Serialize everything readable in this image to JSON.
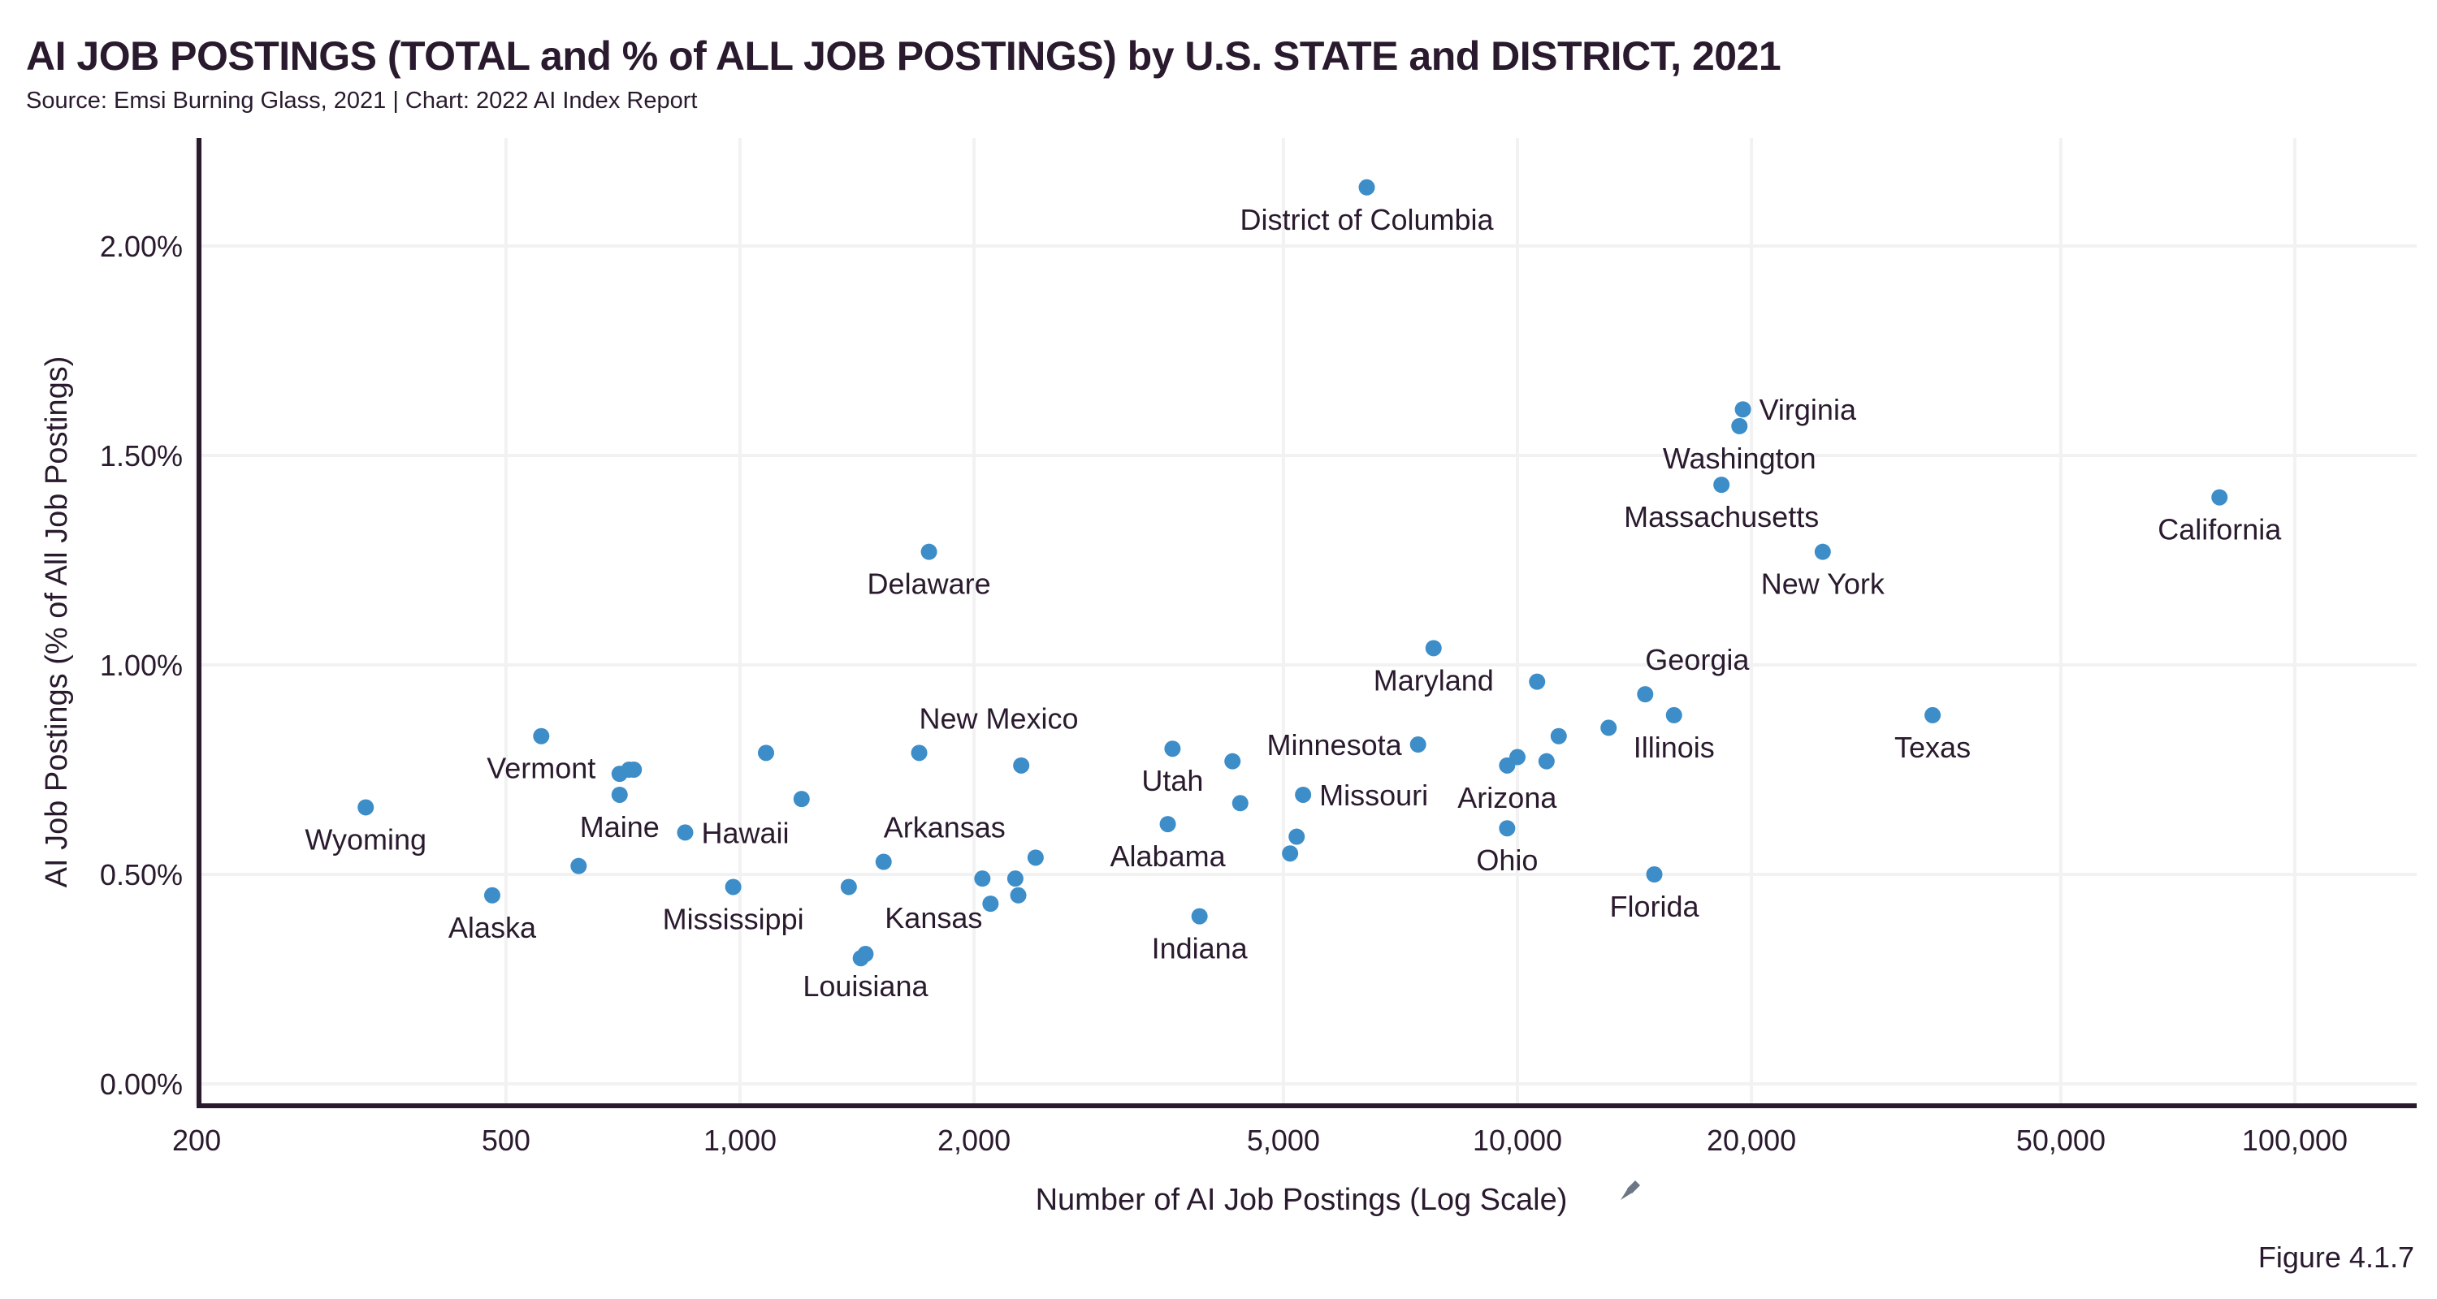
{
  "header": {
    "title": "AI JOB POSTINGS (TOTAL and % of ALL JOB POSTINGS) by U.S. STATE and DISTRICT, 2021",
    "subtitle": "Source: Emsi Burning Glass, 2021 | Chart: 2022 AI Index Report"
  },
  "footer": {
    "figure_label": "Figure 4.1.7"
  },
  "colors": {
    "point": "#3d8dc9",
    "text": "#2a1a2e",
    "grid": "#f2f2f2",
    "axis": "#2a1a2e",
    "icon": "#6b7785"
  },
  "chart_data": {
    "type": "scatter",
    "title": "AI JOB POSTINGS (TOTAL and % of ALL JOB POSTINGS) by U.S. STATE and DISTRICT, 2021",
    "xlabel": "Number of AI Job Postings (Log Scale)",
    "ylabel": "AI Job Postings (% of All Job Postings)",
    "xscale": "log",
    "xlim": [
      180,
      150000
    ],
    "ylim": [
      -0.05,
      2.25
    ],
    "xticks": [
      200,
      500,
      1000,
      2000,
      5000,
      10000,
      20000,
      50000,
      100000
    ],
    "xtick_labels": [
      "200",
      "500",
      "1,000",
      "2,000",
      "5,000",
      "10,000",
      "20,000",
      "50,000",
      "100,000"
    ],
    "yticks": [
      0,
      0.5,
      1.0,
      1.5,
      2.0
    ],
    "ytick_labels": [
      "0.00%",
      "0.50%",
      "1.00%",
      "1.50%",
      "2.00%"
    ],
    "grid": true,
    "points": [
      {
        "label": "District of Columbia",
        "x": 6400,
        "y": 2.14,
        "pos": "below"
      },
      {
        "label": "Virginia",
        "x": 19500,
        "y": 1.61,
        "pos": "right"
      },
      {
        "label": "Washington",
        "x": 19300,
        "y": 1.57,
        "pos": "below"
      },
      {
        "label": "Massachusetts",
        "x": 18300,
        "y": 1.43,
        "pos": "below"
      },
      {
        "label": "California",
        "x": 80000,
        "y": 1.4,
        "pos": "below"
      },
      {
        "label": "New York",
        "x": 24700,
        "y": 1.27,
        "pos": "below"
      },
      {
        "label": "Delaware",
        "x": 1750,
        "y": 1.27,
        "pos": "below"
      },
      {
        "label": "Maryland",
        "x": 7800,
        "y": 1.04,
        "pos": "below"
      },
      {
        "label": "",
        "x": 10600,
        "y": 0.96,
        "pos": "none"
      },
      {
        "label": "Georgia",
        "x": 14600,
        "y": 0.93,
        "pos": "above-right"
      },
      {
        "label": "Illinois",
        "x": 15900,
        "y": 0.88,
        "pos": "below"
      },
      {
        "label": "Texas",
        "x": 34200,
        "y": 0.88,
        "pos": "below"
      },
      {
        "label": "",
        "x": 13100,
        "y": 0.85,
        "pos": "none"
      },
      {
        "label": "",
        "x": 11300,
        "y": 0.83,
        "pos": "none"
      },
      {
        "label": "Minnesota",
        "x": 7450,
        "y": 0.81,
        "pos": "left"
      },
      {
        "label": "",
        "x": 10000,
        "y": 0.78,
        "pos": "none"
      },
      {
        "label": "",
        "x": 10900,
        "y": 0.77,
        "pos": "none"
      },
      {
        "label": "Arizona",
        "x": 9700,
        "y": 0.76,
        "pos": "below"
      },
      {
        "label": "",
        "x": 3600,
        "y": 0.8,
        "pos": "none"
      },
      {
        "label": "",
        "x": 4300,
        "y": 0.77,
        "pos": "none"
      },
      {
        "label": "Utah",
        "x": 3600,
        "y": 0.8,
        "pos": "hidden"
      },
      {
        "label": "",
        "x": 4400,
        "y": 0.67,
        "pos": "none"
      },
      {
        "label": "Missouri",
        "x": 5300,
        "y": 0.69,
        "pos": "right"
      },
      {
        "label": "Ohio",
        "x": 9700,
        "y": 0.61,
        "pos": "below"
      },
      {
        "label": "Alabama",
        "x": 3550,
        "y": 0.62,
        "pos": "below"
      },
      {
        "label": "",
        "x": 5200,
        "y": 0.59,
        "pos": "none"
      },
      {
        "label": "",
        "x": 5100,
        "y": 0.55,
        "pos": "none"
      },
      {
        "label": "Florida",
        "x": 15000,
        "y": 0.5,
        "pos": "below"
      },
      {
        "label": "Indiana",
        "x": 3900,
        "y": 0.4,
        "pos": "below"
      },
      {
        "label": "New Mexico",
        "x": 1700,
        "y": 0.79,
        "pos": "above-right"
      },
      {
        "label": "",
        "x": 2300,
        "y": 0.76,
        "pos": "none"
      },
      {
        "label": "Arkansas",
        "x": 1530,
        "y": 0.53,
        "pos": "above-right"
      },
      {
        "label": "",
        "x": 2400,
        "y": 0.54,
        "pos": "none"
      },
      {
        "label": "",
        "x": 2050,
        "y": 0.49,
        "pos": "none"
      },
      {
        "label": "",
        "x": 2260,
        "y": 0.49,
        "pos": "none"
      },
      {
        "label": "",
        "x": 2280,
        "y": 0.45,
        "pos": "none"
      },
      {
        "label": "Kansas",
        "x": 2100,
        "y": 0.43,
        "pos": "left-below"
      },
      {
        "label": "",
        "x": 1380,
        "y": 0.47,
        "pos": "none"
      },
      {
        "label": "Louisiana",
        "x": 1450,
        "y": 0.31,
        "pos": "below"
      },
      {
        "label": "",
        "x": 1430,
        "y": 0.3,
        "pos": "none"
      },
      {
        "label": "Mississippi",
        "x": 980,
        "y": 0.47,
        "pos": "below"
      },
      {
        "label": "",
        "x": 1080,
        "y": 0.79,
        "pos": "none"
      },
      {
        "label": "",
        "x": 1200,
        "y": 0.68,
        "pos": "none"
      },
      {
        "label": "Hawaii",
        "x": 850,
        "y": 0.6,
        "pos": "right"
      },
      {
        "label": "",
        "x": 700,
        "y": 0.74,
        "pos": "none"
      },
      {
        "label": "",
        "x": 720,
        "y": 0.75,
        "pos": "none"
      },
      {
        "label": "",
        "x": 730,
        "y": 0.75,
        "pos": "none"
      },
      {
        "label": "Maine",
        "x": 700,
        "y": 0.69,
        "pos": "below"
      },
      {
        "label": "Vermont",
        "x": 555,
        "y": 0.83,
        "pos": "below"
      },
      {
        "label": "",
        "x": 620,
        "y": 0.52,
        "pos": "none"
      },
      {
        "label": "Wyoming",
        "x": 330,
        "y": 0.66,
        "pos": "below"
      },
      {
        "label": "Alaska",
        "x": 480,
        "y": 0.45,
        "pos": "below"
      }
    ]
  }
}
